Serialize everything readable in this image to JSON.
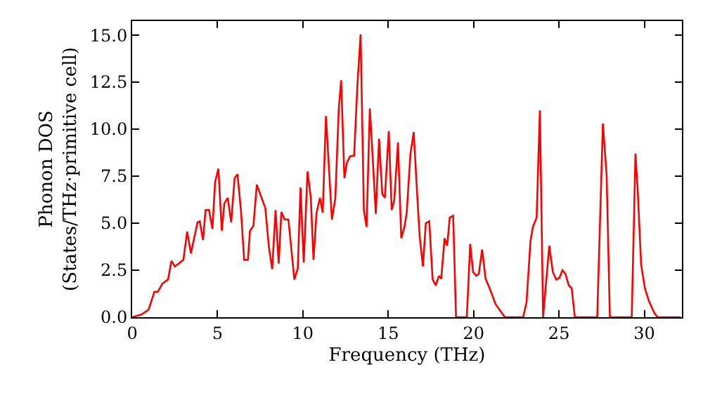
{
  "chart_data": {
    "type": "line",
    "xlabel": "Frequency (THz)",
    "ylabel": "Phonon DOS\n(States/THz·primitive cell)",
    "xlim": [
      0,
      32.2
    ],
    "ylim": [
      0,
      15.75
    ],
    "xticks": [
      0,
      5,
      10,
      15,
      20,
      25,
      30
    ],
    "yticks": [
      {
        "value": 0,
        "label": "0.0"
      },
      {
        "value": 2.5,
        "label": "2.5"
      },
      {
        "value": 5,
        "label": "5.0"
      },
      {
        "value": 7.5,
        "label": "7.5"
      },
      {
        "value": 10,
        "label": "10.0"
      },
      {
        "value": 12.5,
        "label": "12.5"
      },
      {
        "value": 15,
        "label": "15.0"
      }
    ],
    "marker": "none",
    "line_style": "solid",
    "series": [
      {
        "color": "#ff0000",
        "x": [
          0,
          0.55,
          0.96,
          1.3,
          1.5,
          1.78,
          2.1,
          2.3,
          2.5,
          3.0,
          3.22,
          3.44,
          3.83,
          3.96,
          4.15,
          4.3,
          4.5,
          4.7,
          4.86,
          5.05,
          5.25,
          5.4,
          5.6,
          5.8,
          6.0,
          6.17,
          6.37,
          6.56,
          6.78,
          6.9,
          7.1,
          7.3,
          7.8,
          8.0,
          8.2,
          8.4,
          8.58,
          8.74,
          8.93,
          9.15,
          9.5,
          9.7,
          9.86,
          10.05,
          10.27,
          10.46,
          10.62,
          10.8,
          11.0,
          11.16,
          11.35,
          11.7,
          11.9,
          12.1,
          12.24,
          12.43,
          12.57,
          12.76,
          13.0,
          13.19,
          13.38,
          13.57,
          13.73,
          13.92,
          14.1,
          14.27,
          14.46,
          14.65,
          14.8,
          15.03,
          15.2,
          15.35,
          15.57,
          15.76,
          15.95,
          16.08,
          16.3,
          16.49,
          16.7,
          16.84,
          17.03,
          17.2,
          17.4,
          17.6,
          17.78,
          17.97,
          18.1,
          18.3,
          18.45,
          18.6,
          18.8,
          18.97,
          19.6,
          19.8,
          19.97,
          20.16,
          20.3,
          20.5,
          20.7,
          21.0,
          21.28,
          21.83,
          22.9,
          23.1,
          23.33,
          23.47,
          23.69,
          23.88,
          24.07,
          24.43,
          24.64,
          24.84,
          25.03,
          25.2,
          25.38,
          25.57,
          25.74,
          25.93,
          27.24,
          27.57,
          27.79,
          27.98,
          29.26,
          29.48,
          29.62,
          29.81,
          30.03,
          30.25,
          30.57,
          30.77,
          32.13
        ],
        "values": [
          0,
          0.15,
          0.4,
          1.35,
          1.35,
          1.8,
          2.0,
          3.0,
          2.7,
          3.05,
          4.55,
          3.4,
          5.05,
          5.1,
          4.1,
          5.7,
          5.7,
          4.7,
          7.2,
          7.9,
          4.6,
          6.05,
          6.35,
          5.05,
          7.4,
          7.6,
          5.7,
          3.05,
          3.05,
          4.6,
          4.85,
          7.05,
          5.8,
          3.8,
          2.55,
          5.7,
          2.85,
          5.6,
          5.2,
          5.2,
          2.0,
          2.6,
          6.9,
          2.9,
          7.75,
          6.4,
          3.05,
          5.55,
          6.35,
          5.55,
          10.7,
          5.2,
          6.35,
          11.05,
          12.6,
          7.4,
          8.2,
          8.55,
          8.6,
          12.3,
          15.05,
          5.7,
          4.8,
          11.1,
          8.3,
          5.5,
          9.5,
          6.55,
          6.35,
          9.9,
          5.7,
          6.2,
          9.3,
          4.2,
          4.8,
          5.55,
          8.7,
          9.85,
          6.4,
          4.3,
          2.7,
          5.0,
          5.1,
          2.0,
          1.7,
          2.2,
          2.05,
          4.2,
          3.8,
          5.3,
          5.4,
          0,
          0,
          3.9,
          2.4,
          2.2,
          2.3,
          3.6,
          2.05,
          1.4,
          0.7,
          0,
          0,
          0.8,
          4.05,
          4.8,
          5.3,
          11.0,
          0,
          3.8,
          2.4,
          2.0,
          2.1,
          2.5,
          2.3,
          1.7,
          1.55,
          0,
          0,
          10.3,
          7.55,
          0,
          0,
          8.7,
          6.55,
          2.8,
          1.55,
          0.9,
          0.25,
          0,
          0
        ]
      }
    ]
  }
}
